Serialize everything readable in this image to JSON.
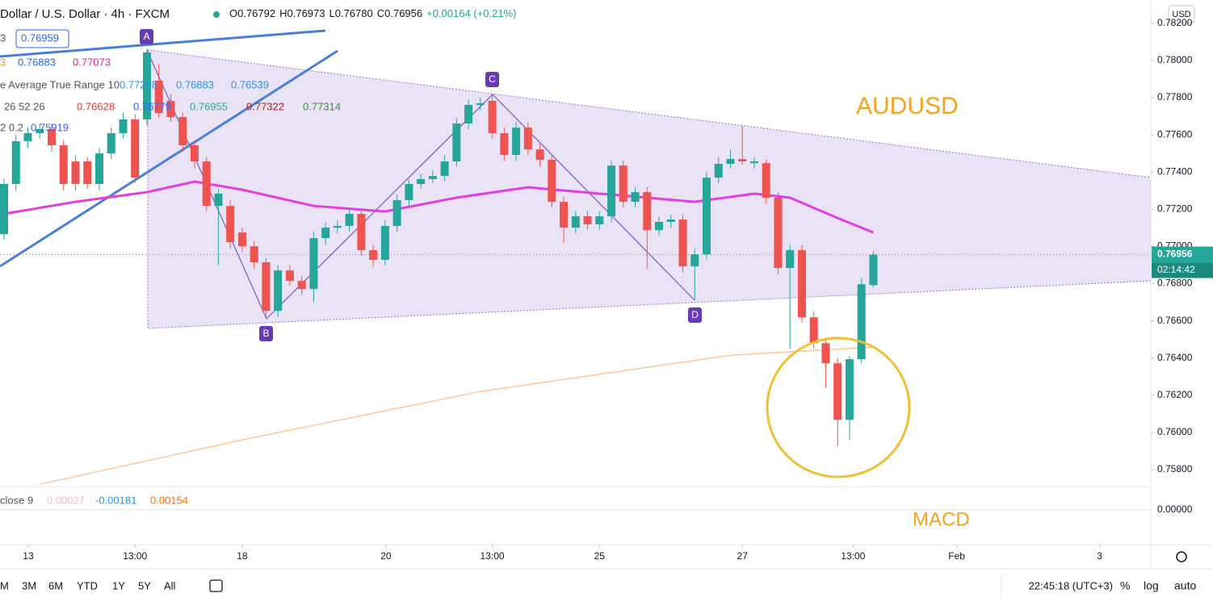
{
  "chart_data": {
    "type": "candlestick",
    "title": "Dollar / U.S. Dollar · 4h · FXCM",
    "ohlc_texts": [
      "O0.76792",
      "H0.76973",
      "L0.76780",
      "C0.76956",
      "+0.00164 (+0.21%)"
    ],
    "currency": "USD",
    "last_price_label": "0.76956",
    "countdown": "02:14:42",
    "up_color": "#26a69a",
    "down_color": "#ef5350",
    "ylim": [
      0.75709,
      0.78325
    ],
    "yticks": [
      {
        "value": 0.758,
        "label": "0.75800"
      },
      {
        "value": 0.76,
        "label": "0.76000"
      },
      {
        "value": 0.762,
        "label": "0.76200"
      },
      {
        "value": 0.764,
        "label": "0.76400"
      },
      {
        "value": 0.766,
        "label": "0.76600"
      },
      {
        "value": 0.768,
        "label": "0.76800"
      },
      {
        "value": 0.77,
        "label": "0.77000"
      },
      {
        "value": 0.772,
        "label": "0.77200"
      },
      {
        "value": 0.774,
        "label": "0.77400"
      },
      {
        "value": 0.776,
        "label": "0.77600"
      },
      {
        "value": 0.778,
        "label": "0.77800"
      },
      {
        "value": 0.78,
        "label": "0.78000"
      },
      {
        "value": 0.782,
        "label": "0.78200"
      }
    ],
    "xlim": [
      -0.34,
      96.3
    ],
    "xticks": [
      {
        "value": 2.03,
        "label": "13"
      },
      {
        "value": 11,
        "label": "13:00"
      },
      {
        "value": 20,
        "label": "18"
      },
      {
        "value": 32.07,
        "label": "20"
      },
      {
        "value": 41,
        "label": "13:00"
      },
      {
        "value": 50,
        "label": "25"
      },
      {
        "value": 62,
        "label": "27"
      },
      {
        "value": 71.3,
        "label": "13:00"
      },
      {
        "value": 80,
        "label": "Feb"
      },
      {
        "value": 92,
        "label": "3"
      }
    ],
    "candles": [
      [
        0.77066,
        0.77366,
        0.77036,
        0.77336
      ],
      [
        0.77336,
        0.776,
        0.773,
        0.77566
      ],
      [
        0.77566,
        0.7764,
        0.7753,
        0.77609
      ],
      [
        0.77609,
        0.7766,
        0.7758,
        0.77631
      ],
      [
        0.77631,
        0.7766,
        0.7751,
        0.77544
      ],
      [
        0.77544,
        0.7757,
        0.773,
        0.77336
      ],
      [
        0.77457,
        0.7749,
        0.773,
        0.77336
      ],
      [
        0.77457,
        0.7748,
        0.7731,
        0.77336
      ],
      [
        0.77336,
        0.7753,
        0.773,
        0.775
      ],
      [
        0.775,
        0.7764,
        0.7747,
        0.77609
      ],
      [
        0.77609,
        0.7772,
        0.7758,
        0.77683
      ],
      [
        0.77683,
        0.7771,
        0.7734,
        0.7737
      ],
      [
        0.77683,
        0.7806,
        0.7765,
        0.78043
      ],
      [
        0.77891,
        0.7798,
        0.7769,
        0.77717
      ],
      [
        0.77783,
        0.7782,
        0.7767,
        0.77696
      ],
      [
        0.77696,
        0.7772,
        0.7751,
        0.77544
      ],
      [
        0.77544,
        0.7757,
        0.7742,
        0.77457
      ],
      [
        0.77457,
        0.7748,
        0.7719,
        0.77218
      ],
      [
        0.77218,
        0.7731,
        0.769,
        0.77284
      ],
      [
        0.77218,
        0.7725,
        0.7699,
        0.77023
      ],
      [
        0.77075,
        0.771,
        0.7697,
        0.77001
      ],
      [
        0.77001,
        0.7703,
        0.7688,
        0.76915
      ],
      [
        0.76915,
        0.7694,
        0.76611,
        0.76654
      ],
      [
        0.76654,
        0.769,
        0.7662,
        0.76871
      ],
      [
        0.76871,
        0.769,
        0.7679,
        0.76815
      ],
      [
        0.76815,
        0.7684,
        0.7674,
        0.76771
      ],
      [
        0.76771,
        0.7708,
        0.767,
        0.77045
      ],
      [
        0.77045,
        0.7713,
        0.7701,
        0.77101
      ],
      [
        0.77101,
        0.7714,
        0.7707,
        0.7711
      ],
      [
        0.7711,
        0.772,
        0.7708,
        0.77175
      ],
      [
        0.77175,
        0.772,
        0.7695,
        0.7698
      ],
      [
        0.7698,
        0.7701,
        0.7689,
        0.76928
      ],
      [
        0.76928,
        0.7714,
        0.769,
        0.7711
      ],
      [
        0.7711,
        0.7728,
        0.7708,
        0.77249
      ],
      [
        0.77249,
        0.7736,
        0.7722,
        0.77336
      ],
      [
        0.77336,
        0.7739,
        0.7731,
        0.77362
      ],
      [
        0.77362,
        0.7741,
        0.7734,
        0.77379
      ],
      [
        0.77379,
        0.7749,
        0.7735,
        0.77457
      ],
      [
        0.77457,
        0.7769,
        0.7743,
        0.77661
      ],
      [
        0.77661,
        0.7779,
        0.7763,
        0.77761
      ],
      [
        0.77761,
        0.778,
        0.7773,
        0.7777
      ],
      [
        0.77783,
        0.77817,
        0.7758,
        0.77609
      ],
      [
        0.77609,
        0.7764,
        0.7746,
        0.77492
      ],
      [
        0.77492,
        0.7767,
        0.7746,
        0.77639
      ],
      [
        0.77639,
        0.7767,
        0.7749,
        0.77522
      ],
      [
        0.77522,
        0.7755,
        0.7743,
        0.77466
      ],
      [
        0.77466,
        0.7749,
        0.7721,
        0.7724
      ],
      [
        0.7724,
        0.7727,
        0.7702,
        0.77101
      ],
      [
        0.77101,
        0.7719,
        0.7707,
        0.77162
      ],
      [
        0.77162,
        0.7719,
        0.7709,
        0.77119
      ],
      [
        0.77119,
        0.7719,
        0.7709,
        0.77162
      ],
      [
        0.77162,
        0.7746,
        0.7713,
        0.77435
      ],
      [
        0.77435,
        0.7746,
        0.7721,
        0.7724
      ],
      [
        0.7724,
        0.7732,
        0.7721,
        0.77292
      ],
      [
        0.77292,
        0.7732,
        0.7688,
        0.77088
      ],
      [
        0.77088,
        0.7716,
        0.7706,
        0.77132
      ],
      [
        0.77132,
        0.7717,
        0.771,
        0.77145
      ],
      [
        0.77145,
        0.7717,
        0.7686,
        0.76893
      ],
      [
        0.76893,
        0.7699,
        0.7671,
        0.76958
      ],
      [
        0.76958,
        0.774,
        0.7693,
        0.7737
      ],
      [
        0.7737,
        0.7748,
        0.7734,
        0.77444
      ],
      [
        0.77444,
        0.7752,
        0.7742,
        0.7747
      ],
      [
        0.7747,
        0.7765,
        0.7744,
        0.77457
      ],
      [
        0.77448,
        0.7748,
        0.7742,
        0.77457
      ],
      [
        0.77448,
        0.7747,
        0.7723,
        0.77262
      ],
      [
        0.77262,
        0.7729,
        0.7685,
        0.76884
      ],
      [
        0.76884,
        0.7701,
        0.7645,
        0.7698
      ],
      [
        0.7698,
        0.7701,
        0.7659,
        0.76619
      ],
      [
        0.76619,
        0.7665,
        0.7645,
        0.7648
      ],
      [
        0.7648,
        0.7651,
        0.7624,
        0.76372
      ],
      [
        0.76372,
        0.764,
        0.75925,
        0.76068
      ],
      [
        0.76068,
        0.7641,
        0.7596,
        0.76394
      ],
      [
        0.76394,
        0.7683,
        0.7637,
        0.76797
      ],
      [
        0.76792,
        0.76973,
        0.7678,
        0.76956
      ]
    ],
    "lines": [
      {
        "color": "#e040e0",
        "x": [
          0,
          6,
          12,
          16,
          20,
          26,
          32,
          38,
          44,
          50,
          54,
          58,
          63,
          66,
          70,
          73
        ],
        "values": [
          0.77175,
          0.7724,
          0.77292,
          0.77349,
          0.77305,
          0.77218,
          0.77188,
          0.77262,
          0.77318,
          0.77284,
          0.77262,
          0.7724,
          0.77284,
          0.77262,
          0.77153,
          0.77075
        ]
      },
      {
        "color": "#ffc79a",
        "x": [
          3,
          20,
          40,
          61,
          73
        ],
        "values": [
          0.75721,
          0.7596,
          0.7622,
          0.76415,
          0.76459
        ]
      }
    ],
    "legend_rows": [
      {
        "texts": [
          "3",
          "0.76959"
        ]
      },
      {
        "texts": [
          "3",
          "0.76883",
          "0.77073"
        ]
      },
      {
        "texts": [
          "e Average True Range 10",
          "0.77228",
          "0.76883",
          "0.76539"
        ]
      },
      {
        "texts": [
          "26 52 26",
          "0.76628",
          "0.76779",
          "0.76955",
          "0.77322",
          "0.77314"
        ]
      },
      {
        "texts": [
          "2 0.2",
          "0.75919"
        ]
      }
    ],
    "pattern_points": [
      "A",
      "B",
      "C",
      "D"
    ],
    "annotation": "AUDUSD",
    "macd": {
      "legend": [
        "close 9",
        "0.00027",
        "-0.00181",
        "0.00154"
      ],
      "annotation": "MACD",
      "ylim": [
        -0.0024,
        0.0016
      ],
      "yticks": [
        {
          "value": 0,
          "label": "0.00000"
        }
      ]
    }
  },
  "toolbar": {
    "ranges": [
      "M",
      "3M",
      "6M",
      "YTD",
      "1Y",
      "5Y",
      "All"
    ],
    "clock": "22:45:18 (UTC+3)",
    "options": [
      "%",
      "log",
      "auto"
    ]
  }
}
